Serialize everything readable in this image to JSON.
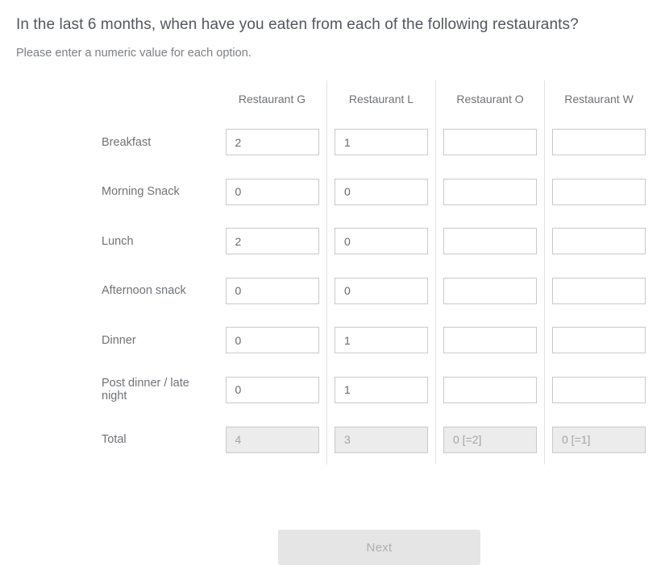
{
  "question": {
    "title": "In the last 6 months, when have you eaten from each of the following restaurants?",
    "instruction": "Please enter a numeric value for each option."
  },
  "table": {
    "columns": [
      "Restaurant G",
      "Restaurant L",
      "Restaurant O",
      "Restaurant W"
    ],
    "rows": [
      {
        "label": "Breakfast",
        "values": [
          "2",
          "1",
          "",
          ""
        ]
      },
      {
        "label": "Morning Snack",
        "values": [
          "0",
          "0",
          "",
          ""
        ]
      },
      {
        "label": "Lunch",
        "values": [
          "2",
          "0",
          "",
          ""
        ]
      },
      {
        "label": "Afternoon snack",
        "values": [
          "0",
          "0",
          "",
          ""
        ]
      },
      {
        "label": "Dinner",
        "values": [
          "0",
          "1",
          "",
          ""
        ]
      },
      {
        "label": "Post dinner / late night",
        "values": [
          "0",
          "1",
          "",
          ""
        ]
      }
    ],
    "total_row": {
      "label": "Total",
      "values": [
        "4",
        "3",
        "0 [=2]",
        "0 [=1]"
      ]
    }
  },
  "footer": {
    "next_label": "Next"
  },
  "colors": {
    "title_text": "#53575e",
    "body_text": "#6f7276",
    "input_border": "#c9c9c9",
    "column_divider": "#e3e3e3",
    "disabled_input_bg": "#ececec",
    "disabled_input_text": "#a3a3a3",
    "next_button_bg": "#e5e5e5",
    "next_button_text": "#aeaeae"
  }
}
